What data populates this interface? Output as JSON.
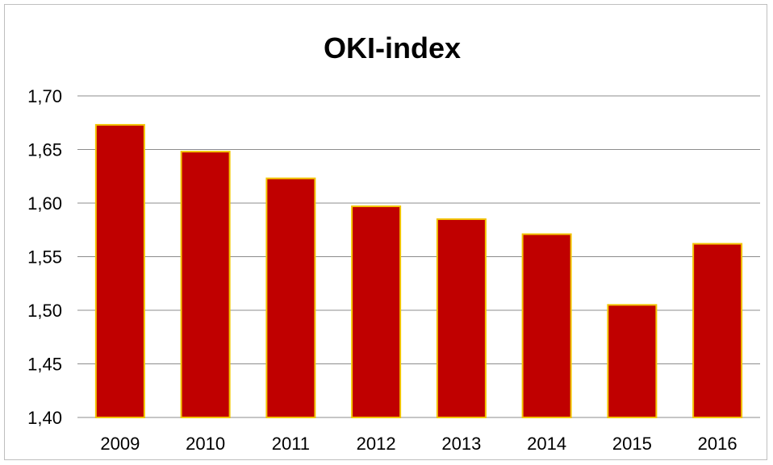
{
  "chart_data": {
    "type": "bar",
    "title": "OKI-index",
    "categories": [
      "2009",
      "2010",
      "2011",
      "2012",
      "2013",
      "2014",
      "2015",
      "2016"
    ],
    "values": [
      1.673,
      1.648,
      1.623,
      1.597,
      1.585,
      1.571,
      1.505,
      1.562
    ],
    "ylim": [
      1.4,
      1.7
    ],
    "yticks": [
      "1,40",
      "1,45",
      "1,50",
      "1,55",
      "1,60",
      "1,65",
      "1,70"
    ],
    "ytick_values": [
      1.4,
      1.45,
      1.5,
      1.55,
      1.6,
      1.65,
      1.7
    ],
    "grid": true,
    "legend": "none",
    "colors": {
      "bar_fill": "#c00000",
      "bar_border": "#f2c400",
      "gridline": "#8c8c8c",
      "text": "#000000"
    }
  }
}
